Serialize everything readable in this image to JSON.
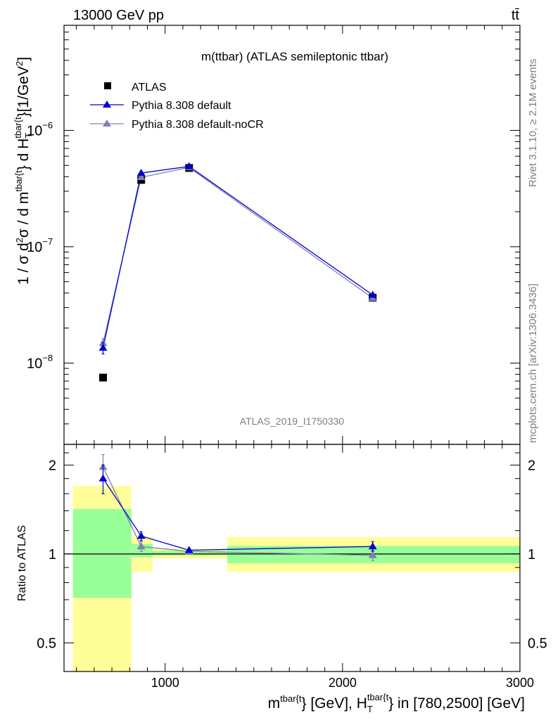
{
  "header": {
    "beam_label": "13000 GeV pp",
    "process_label": "tt̄"
  },
  "side_text": {
    "rivet": "Rivet 3.1.10, ≥ 2.1M events",
    "site": "mcplots.cern.ch [arXiv:1306.3436]"
  },
  "chart_data": [
    {
      "type": "scatter",
      "panel": "main",
      "title": "m(ttbar) (ATLAS semileptonic ttbar)",
      "analysis_label": "ATLAS_2019_I1750330",
      "ylabel": {
        "p1": "1 / σ d",
        "sup2": "2",
        "p2": "σ / d m",
        "sup_tbar1": "tbar{t",
        "p3": "} d H",
        "sub_T": "T",
        "sup_tbar2": "tbar{t",
        "p4": "}[1/GeV",
        "sup_exp": "2",
        "p5": "]"
      },
      "yscale": "log",
      "xlim": [
        430,
        3000
      ],
      "ylim": [
        2e-09,
        8e-06
      ],
      "y_ticks": [
        {
          "value": 1e-08,
          "label": "10",
          "exp": "−8"
        },
        {
          "value": 1e-07,
          "label": "10",
          "exp": "−7"
        },
        {
          "value": 1e-06,
          "label": "10",
          "exp": "−6"
        }
      ],
      "legend": {
        "placement": "top-left"
      },
      "series": [
        {
          "name": "ATLAS",
          "marker": "square",
          "color": "#000000",
          "line": false,
          "points": [
            {
              "x": 650,
              "y": 7.5e-09
            },
            {
              "x": 865,
              "y": 3.75e-07
            },
            {
              "x": 1135,
              "y": 4.75e-07
            },
            {
              "x": 2170,
              "y": 3.65e-08
            }
          ]
        },
        {
          "name": "Pythia 8.308 default",
          "marker": "triangle",
          "color": "#0000cc",
          "line": true,
          "points": [
            {
              "x": 650,
              "y": 1.35e-08,
              "ylo": 1.2e-08,
              "yhi": 1.5e-08
            },
            {
              "x": 865,
              "y": 4.3e-07
            },
            {
              "x": 1135,
              "y": 4.9e-07
            },
            {
              "x": 2170,
              "y": 3.85e-08
            }
          ]
        },
        {
          "name": "Pythia 8.308 default-noCR",
          "marker": "triangle",
          "color": "#7f7fb3",
          "line": true,
          "points": [
            {
              "x": 650,
              "y": 1.48e-08,
              "ylo": 1.33e-08,
              "yhi": 1.62e-08
            },
            {
              "x": 865,
              "y": 3.95e-07
            },
            {
              "x": 1135,
              "y": 4.8e-07
            },
            {
              "x": 2170,
              "y": 3.62e-08
            }
          ]
        }
      ]
    },
    {
      "type": "scatter",
      "panel": "ratio",
      "ylabel": "Ratio to ATLAS",
      "xlabel": {
        "p1": "m",
        "sup_tbar1": "tbar{t",
        "p2": "} [GeV], H",
        "sub_T": "T",
        "sup_tbar2": "tbar{t",
        "p3": "} in [780,2500] [GeV]"
      },
      "yscale": "log",
      "xlim": [
        430,
        3000
      ],
      "ylim": [
        0.4,
        2.35
      ],
      "x_ticks": [
        {
          "value": 1000,
          "label": "1000"
        },
        {
          "value": 2000,
          "label": "2000"
        },
        {
          "value": 3000,
          "label": "3000"
        }
      ],
      "y_ticks": [
        {
          "value": 0.5,
          "label": "0.5"
        },
        {
          "value": 1,
          "label": "1"
        },
        {
          "value": 2,
          "label": "2"
        }
      ],
      "uncertainty_bands": [
        {
          "x0": 480,
          "x1": 810,
          "stat_lo": 0.71,
          "stat_hi": 1.42,
          "tot_lo": 0.33,
          "tot_hi": 1.7
        },
        {
          "x0": 810,
          "x1": 930,
          "stat_lo": 0.975,
          "stat_hi": 1.08,
          "tot_lo": 0.87,
          "tot_hi": 1.14
        },
        {
          "x0": 930,
          "x1": 1350,
          "stat_lo": 0.99,
          "stat_hi": 1.025,
          "tot_lo": 0.965,
          "tot_hi": 1.04
        },
        {
          "x0": 1350,
          "x1": 3000,
          "stat_lo": 0.93,
          "stat_hi": 1.065,
          "tot_lo": 0.87,
          "tot_hi": 1.14
        }
      ],
      "stat_color": "#99ff99",
      "total_color": "#ffff99",
      "series": [
        {
          "name": "Pythia 8.308 default",
          "color": "#0000cc",
          "points": [
            {
              "x": 650,
              "y": 1.8,
              "ylo": 1.6,
              "yhi": 2.0
            },
            {
              "x": 865,
              "y": 1.15,
              "ylo": 1.11,
              "yhi": 1.19
            },
            {
              "x": 1135,
              "y": 1.03
            },
            {
              "x": 2170,
              "y": 1.06,
              "ylo": 1.02,
              "yhi": 1.1
            }
          ]
        },
        {
          "name": "Pythia 8.308 default-noCR",
          "color": "#7f7fb3",
          "points": [
            {
              "x": 650,
              "y": 1.97,
              "ylo": 1.77,
              "yhi": 2.17
            },
            {
              "x": 865,
              "y": 1.06,
              "ylo": 1.02,
              "yhi": 1.1
            },
            {
              "x": 1135,
              "y": 1.02
            },
            {
              "x": 2170,
              "y": 0.99,
              "ylo": 0.95,
              "yhi": 1.03
            }
          ]
        }
      ]
    }
  ]
}
